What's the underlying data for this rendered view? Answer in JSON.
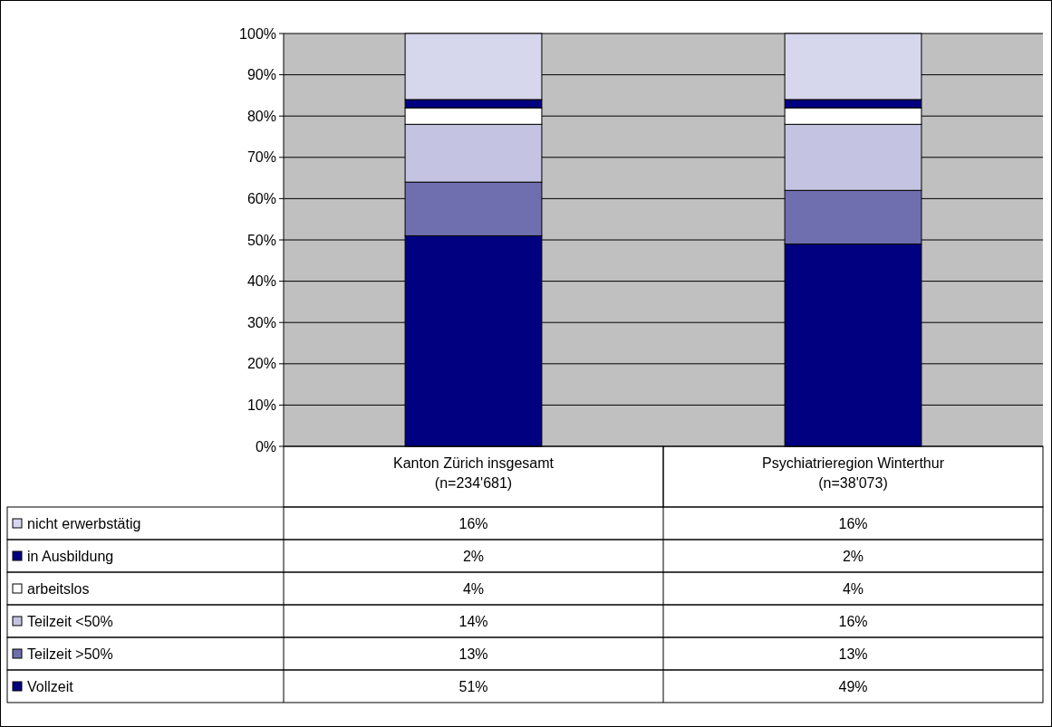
{
  "chart_data": {
    "type": "bar",
    "stacked": true,
    "categories": [
      "Kanton Zürich insgesamt\n(n=234'681)",
      "Psychiatrieregion Winterthur\n(n=38'073)"
    ],
    "series": [
      {
        "name": "Vollzeit",
        "color": "#000080",
        "values": [
          51,
          49
        ],
        "value_labels": [
          "51%",
          "49%"
        ]
      },
      {
        "name": "Teilzeit >50%",
        "color": "#6f6fb0",
        "values": [
          13,
          13
        ],
        "value_labels": [
          "13%",
          "13%"
        ]
      },
      {
        "name": "Teilzeit <50%",
        "color": "#c4c4e2",
        "values": [
          14,
          16
        ],
        "value_labels": [
          "14%",
          "16%"
        ]
      },
      {
        "name": "arbeitslos",
        "color": "#ffffff",
        "values": [
          4,
          4
        ],
        "value_labels": [
          "4%",
          "4%"
        ]
      },
      {
        "name": "in Ausbildung",
        "color": "#000080",
        "values": [
          2,
          2
        ],
        "value_labels": [
          "2%",
          "2%"
        ]
      },
      {
        "name": "nicht erwerbstätig",
        "color": "#d6d6ec",
        "values": [
          16,
          16
        ],
        "value_labels": [
          "16%",
          "16%"
        ]
      }
    ],
    "ylim": [
      0,
      100
    ],
    "yticks": [
      {
        "value": 0,
        "label": "0%"
      },
      {
        "value": 10,
        "label": "10%"
      },
      {
        "value": 20,
        "label": "20%"
      },
      {
        "value": 30,
        "label": "30%"
      },
      {
        "value": 40,
        "label": "40%"
      },
      {
        "value": 50,
        "label": "50%"
      },
      {
        "value": 60,
        "label": "60%"
      },
      {
        "value": 70,
        "label": "70%"
      },
      {
        "value": 80,
        "label": "80%"
      },
      {
        "value": 90,
        "label": "90%"
      },
      {
        "value": 100,
        "label": "100%"
      }
    ],
    "grid": "y",
    "legend": "bottom"
  }
}
